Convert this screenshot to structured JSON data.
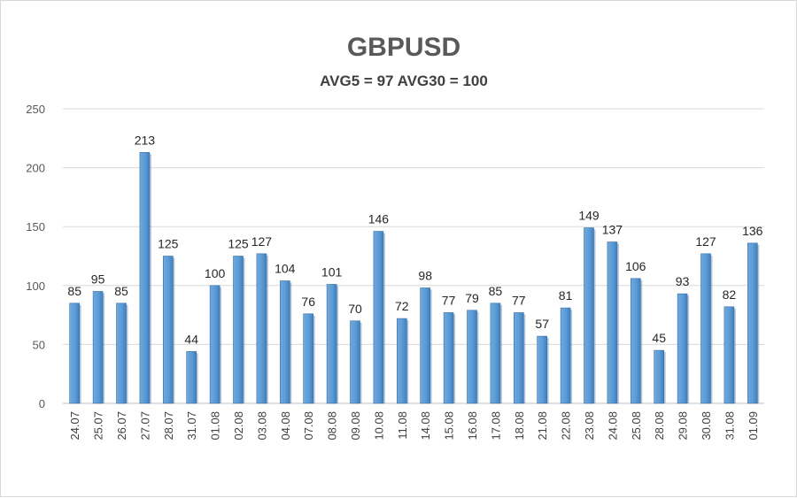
{
  "chart_data": {
    "type": "bar",
    "title": "GBPUSD",
    "subtitle": "AVG5 = 97 AVG30 = 100",
    "xlabel": "",
    "ylabel": "",
    "ylim": [
      0,
      250
    ],
    "yticks": [
      0,
      50,
      100,
      150,
      200,
      250
    ],
    "grid": true,
    "legend": "none",
    "bar_color": "#5b9bd5",
    "categories": [
      "24.07",
      "25.07",
      "26.07",
      "27.07",
      "28.07",
      "31.07",
      "01.08",
      "02.08",
      "03.08",
      "04.08",
      "07.08",
      "08.08",
      "09.08",
      "10.08",
      "11.08",
      "14.08",
      "15.08",
      "16.08",
      "17.08",
      "18.08",
      "21.08",
      "22.08",
      "23.08",
      "24.08",
      "25.08",
      "28.08",
      "29.08",
      "30.08",
      "31.08",
      "01.09"
    ],
    "values": [
      85,
      95,
      85,
      213,
      125,
      44,
      100,
      125,
      127,
      104,
      76,
      101,
      70,
      146,
      72,
      98,
      77,
      79,
      85,
      77,
      57,
      81,
      149,
      137,
      106,
      45,
      93,
      127,
      82,
      136
    ]
  }
}
